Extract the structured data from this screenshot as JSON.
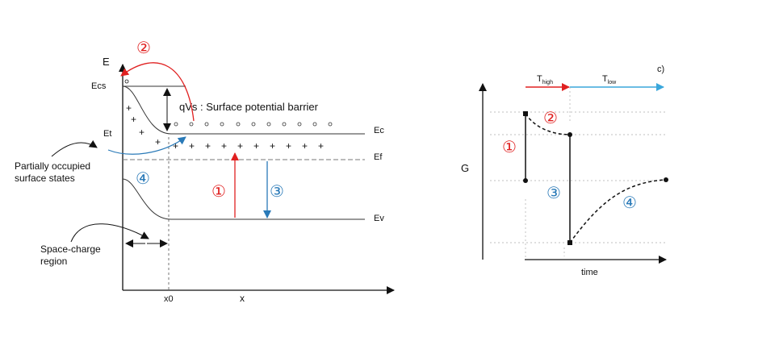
{
  "left": {
    "axis_y": "E",
    "axis_x": "x",
    "x0": "x0",
    "ecs": "Ecs",
    "et": "Et",
    "ec": "Ec",
    "ef": "Ef",
    "ev": "Ev",
    "barrier": "qVs : Surface potential barrier",
    "surface_states": [
      "Partially occupied",
      "surface states"
    ],
    "space_charge": [
      "Space-charge",
      "region"
    ],
    "n1": "①",
    "n2": "②",
    "n3": "③",
    "n4": "④"
  },
  "right": {
    "corner": "c)",
    "axis_y": "G",
    "axis_x": "time",
    "t_high": "T",
    "t_high_sub": "high",
    "t_low": "T",
    "t_low_sub": "low",
    "n1": "①",
    "n2": "②",
    "n3": "③",
    "n4": "④"
  },
  "colors": {
    "red": "#e02020",
    "blue": "#2a7ab8",
    "cyan": "#3aa7dc"
  }
}
